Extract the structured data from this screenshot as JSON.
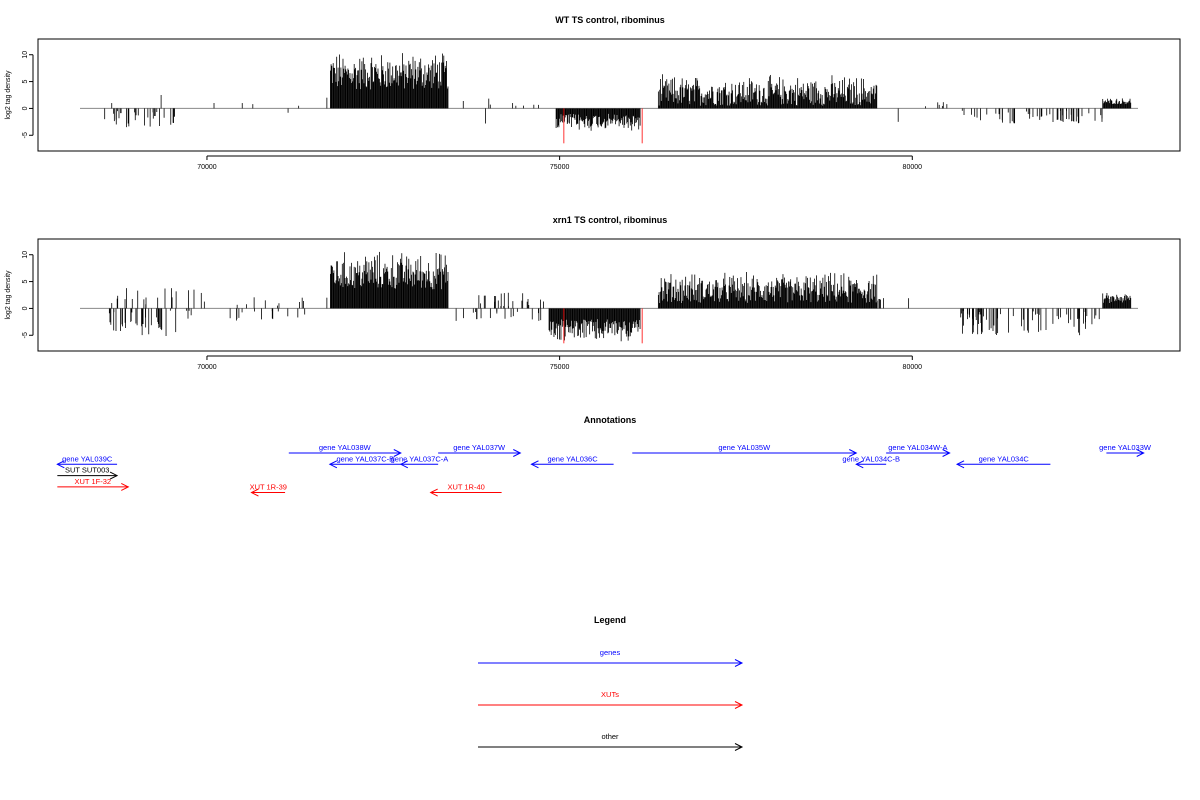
{
  "chart_data": [
    {
      "type": "bar",
      "title": "WT TS control, ribominus",
      "ylabel": "log2 tag density",
      "xlim": [
        68200,
        83200
      ],
      "ylim": [
        -7,
        12
      ],
      "x_ticks": [
        70000,
        75000,
        80000
      ],
      "x_tick_labels": [
        "70000",
        "75000",
        "80000"
      ],
      "y_ticks": [
        -5,
        0,
        5,
        10
      ],
      "y_tick_labels": [
        "-5",
        "0",
        "5",
        "10"
      ],
      "dense_regions": [
        {
          "start": 71750,
          "end": 73420,
          "sign": 1,
          "min": 3.5,
          "max": 11.0,
          "color": "#000000"
        },
        {
          "start": 74950,
          "end": 76150,
          "sign": -1,
          "min": 1.0,
          "max": 4.5,
          "color": "#000000"
        },
        {
          "start": 76400,
          "end": 79500,
          "sign": 1,
          "min": 0.5,
          "max": 6.5,
          "color": "#000000"
        },
        {
          "start": 82700,
          "end": 83100,
          "sign": 1,
          "min": 0.8,
          "max": 2.0,
          "color": "#000000"
        }
      ],
      "sparse_regions": [
        {
          "start": 68600,
          "end": 69550,
          "sign": -1,
          "max": 3.5,
          "count": 30
        },
        {
          "start": 73500,
          "end": 74700,
          "sign": 1,
          "max": 2.0,
          "count": 8
        },
        {
          "start": 79800,
          "end": 80600,
          "sign": 1,
          "max": 1.5,
          "count": 6
        },
        {
          "start": 80700,
          "end": 82700,
          "sign": -1,
          "max": 3.0,
          "count": 55
        }
      ],
      "extra_bars": [
        {
          "x": 68550,
          "y": -2.0
        },
        {
          "x": 68650,
          "y": 1.0
        },
        {
          "x": 69350,
          "y": 2.5
        },
        {
          "x": 70100,
          "y": 1.0
        },
        {
          "x": 70500,
          "y": 1.0
        },
        {
          "x": 70650,
          "y": 0.8
        },
        {
          "x": 71150,
          "y": -0.8
        },
        {
          "x": 71300,
          "y": 0.5
        },
        {
          "x": 71700,
          "y": 2.0
        },
        {
          "x": 73950,
          "y": -2.8
        },
        {
          "x": 79800,
          "y": -2.5
        }
      ],
      "red_bars": [
        {
          "x": 75060,
          "y": -6.5
        },
        {
          "x": 76170,
          "y": -6.5
        }
      ]
    },
    {
      "type": "bar",
      "title": "xrn1 TS control, ribominus",
      "ylabel": "log2 tag density",
      "xlim": [
        68200,
        83200
      ],
      "ylim": [
        -7,
        12
      ],
      "x_ticks": [
        70000,
        75000,
        80000
      ],
      "x_tick_labels": [
        "70000",
        "75000",
        "80000"
      ],
      "y_ticks": [
        -5,
        0,
        5,
        10
      ],
      "y_tick_labels": [
        "-5",
        "0",
        "5",
        "10"
      ],
      "dense_regions": [
        {
          "start": 71750,
          "end": 73420,
          "sign": 1,
          "min": 3.5,
          "max": 11.0,
          "color": "#000000"
        },
        {
          "start": 74850,
          "end": 76150,
          "sign": -1,
          "min": 2.0,
          "max": 6.5,
          "color": "#000000"
        },
        {
          "start": 76400,
          "end": 79500,
          "sign": 1,
          "min": 1.0,
          "max": 7.0,
          "color": "#000000"
        },
        {
          "start": 82700,
          "end": 83100,
          "sign": 1,
          "min": 1.0,
          "max": 3.0,
          "color": "#000000"
        }
      ],
      "sparse_regions": [
        {
          "start": 68600,
          "end": 69800,
          "sign": -1,
          "max": 5.5,
          "count": 40
        },
        {
          "start": 68600,
          "end": 70000,
          "sign": 1,
          "max": 3.8,
          "count": 18
        },
        {
          "start": 70200,
          "end": 71600,
          "sign": -1,
          "max": 2.5,
          "count": 14
        },
        {
          "start": 70200,
          "end": 71400,
          "sign": 1,
          "max": 2.5,
          "count": 8
        },
        {
          "start": 73500,
          "end": 74800,
          "sign": 1,
          "max": 3.0,
          "count": 22
        },
        {
          "start": 73500,
          "end": 74800,
          "sign": -1,
          "max": 2.5,
          "count": 18
        },
        {
          "start": 79500,
          "end": 80500,
          "sign": 1,
          "max": 2.0,
          "count": 6
        },
        {
          "start": 80600,
          "end": 82650,
          "sign": -1,
          "max": 5.0,
          "count": 70
        }
      ],
      "extra_bars": [
        {
          "x": 68650,
          "y": 1.0
        },
        {
          "x": 71350,
          "y": 2.0
        },
        {
          "x": 71700,
          "y": 2.0
        },
        {
          "x": 82650,
          "y": -2.0
        }
      ],
      "red_bars": [
        {
          "x": 75060,
          "y": -6.5
        },
        {
          "x": 76170,
          "y": -6.5
        }
      ]
    }
  ],
  "annotations": {
    "title": "Annotations",
    "xlim": [
      68200,
      83200
    ],
    "features": [
      {
        "name": "gene YAL039C",
        "start": 68700,
        "end": 69500,
        "row": 1,
        "strand": "-",
        "color": "#0000ff"
      },
      {
        "name": "SUT SUT003",
        "start": 68700,
        "end": 69500,
        "row": 2,
        "strand": "+",
        "color": "#000000"
      },
      {
        "name": "XUT 1F-32",
        "start": 68700,
        "end": 69650,
        "row": 3,
        "strand": "+",
        "color": "#ff0000"
      },
      {
        "name": "XUT 1R-39",
        "start": 71300,
        "end": 71750,
        "row": 3.5,
        "strand": "-",
        "color": "#ff0000"
      },
      {
        "name": "gene YAL038W",
        "start": 71800,
        "end": 73300,
        "row": 0,
        "strand": "+",
        "color": "#0000ff"
      },
      {
        "name": "gene YAL037C-B",
        "start": 72350,
        "end": 73300,
        "row": 1,
        "strand": "-",
        "color": "#0000ff"
      },
      {
        "name": "gene YAL037C-A",
        "start": 73300,
        "end": 73800,
        "row": 1,
        "strand": "-",
        "color": "#0000ff"
      },
      {
        "name": "gene YAL037W",
        "start": 73800,
        "end": 74900,
        "row": 0,
        "strand": "+",
        "color": "#0000ff"
      },
      {
        "name": "XUT 1R-40",
        "start": 73700,
        "end": 74650,
        "row": 3.5,
        "strand": "-",
        "color": "#ff0000"
      },
      {
        "name": "gene YAL036C",
        "start": 75050,
        "end": 76150,
        "row": 1,
        "strand": "-",
        "color": "#0000ff"
      },
      {
        "name": "gene YAL035W",
        "start": 76400,
        "end": 79400,
        "row": 0,
        "strand": "+",
        "color": "#0000ff"
      },
      {
        "name": "gene YAL034C-B",
        "start": 79400,
        "end": 79800,
        "row": 1,
        "strand": "-",
        "color": "#0000ff"
      },
      {
        "name": "gene YAL034W-A",
        "start": 79800,
        "end": 80650,
        "row": 0,
        "strand": "+",
        "color": "#0000ff"
      },
      {
        "name": "gene YAL034C",
        "start": 80750,
        "end": 82000,
        "row": 1,
        "strand": "-",
        "color": "#0000ff"
      },
      {
        "name": "gene YAL033W",
        "start": 82750,
        "end": 83250,
        "row": 0,
        "strand": "+",
        "color": "#0000ff"
      }
    ]
  },
  "legend": {
    "title": "Legend",
    "items": [
      {
        "label": "genes",
        "color": "#0000ff"
      },
      {
        "label": "XUTs",
        "color": "#ff0000"
      },
      {
        "label": "other",
        "color": "#000000"
      }
    ]
  }
}
